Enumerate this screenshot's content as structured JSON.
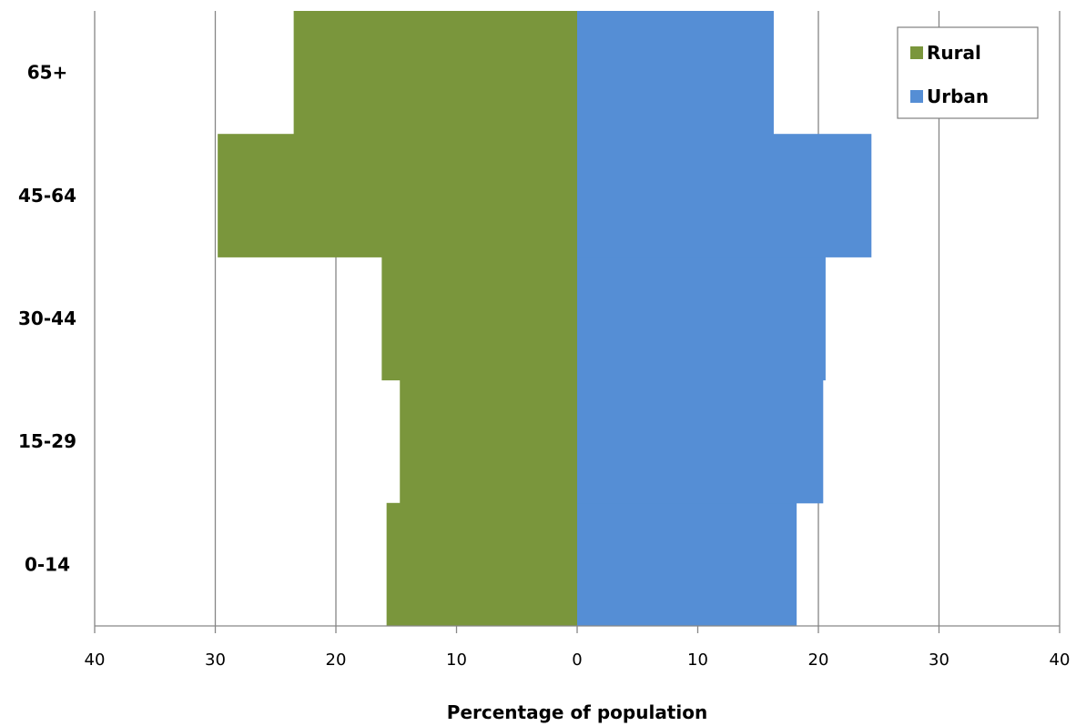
{
  "chart_data": {
    "type": "bar",
    "orientation": "horizontal-population-pyramid",
    "categories": [
      "0-14",
      "15-29",
      "30-44",
      "45-64",
      "65+"
    ],
    "series": [
      {
        "name": "Rural",
        "side": "left",
        "color": "#7a963c",
        "values": [
          15.8,
          14.7,
          16.2,
          29.8,
          23.5
        ]
      },
      {
        "name": "Urban",
        "side": "right",
        "color": "#558ed5",
        "values": [
          18.2,
          20.4,
          20.6,
          24.4,
          16.3
        ]
      }
    ],
    "x_ticks": [
      40,
      30,
      20,
      10,
      0,
      10,
      20,
      30,
      40
    ],
    "xlim": [
      -40,
      40
    ],
    "xlabel": "Percentage of population",
    "ylabel": "",
    "title": "",
    "grid": "vertical",
    "legend": {
      "placement": "top-right",
      "entries": [
        "Rural",
        "Urban"
      ]
    }
  }
}
